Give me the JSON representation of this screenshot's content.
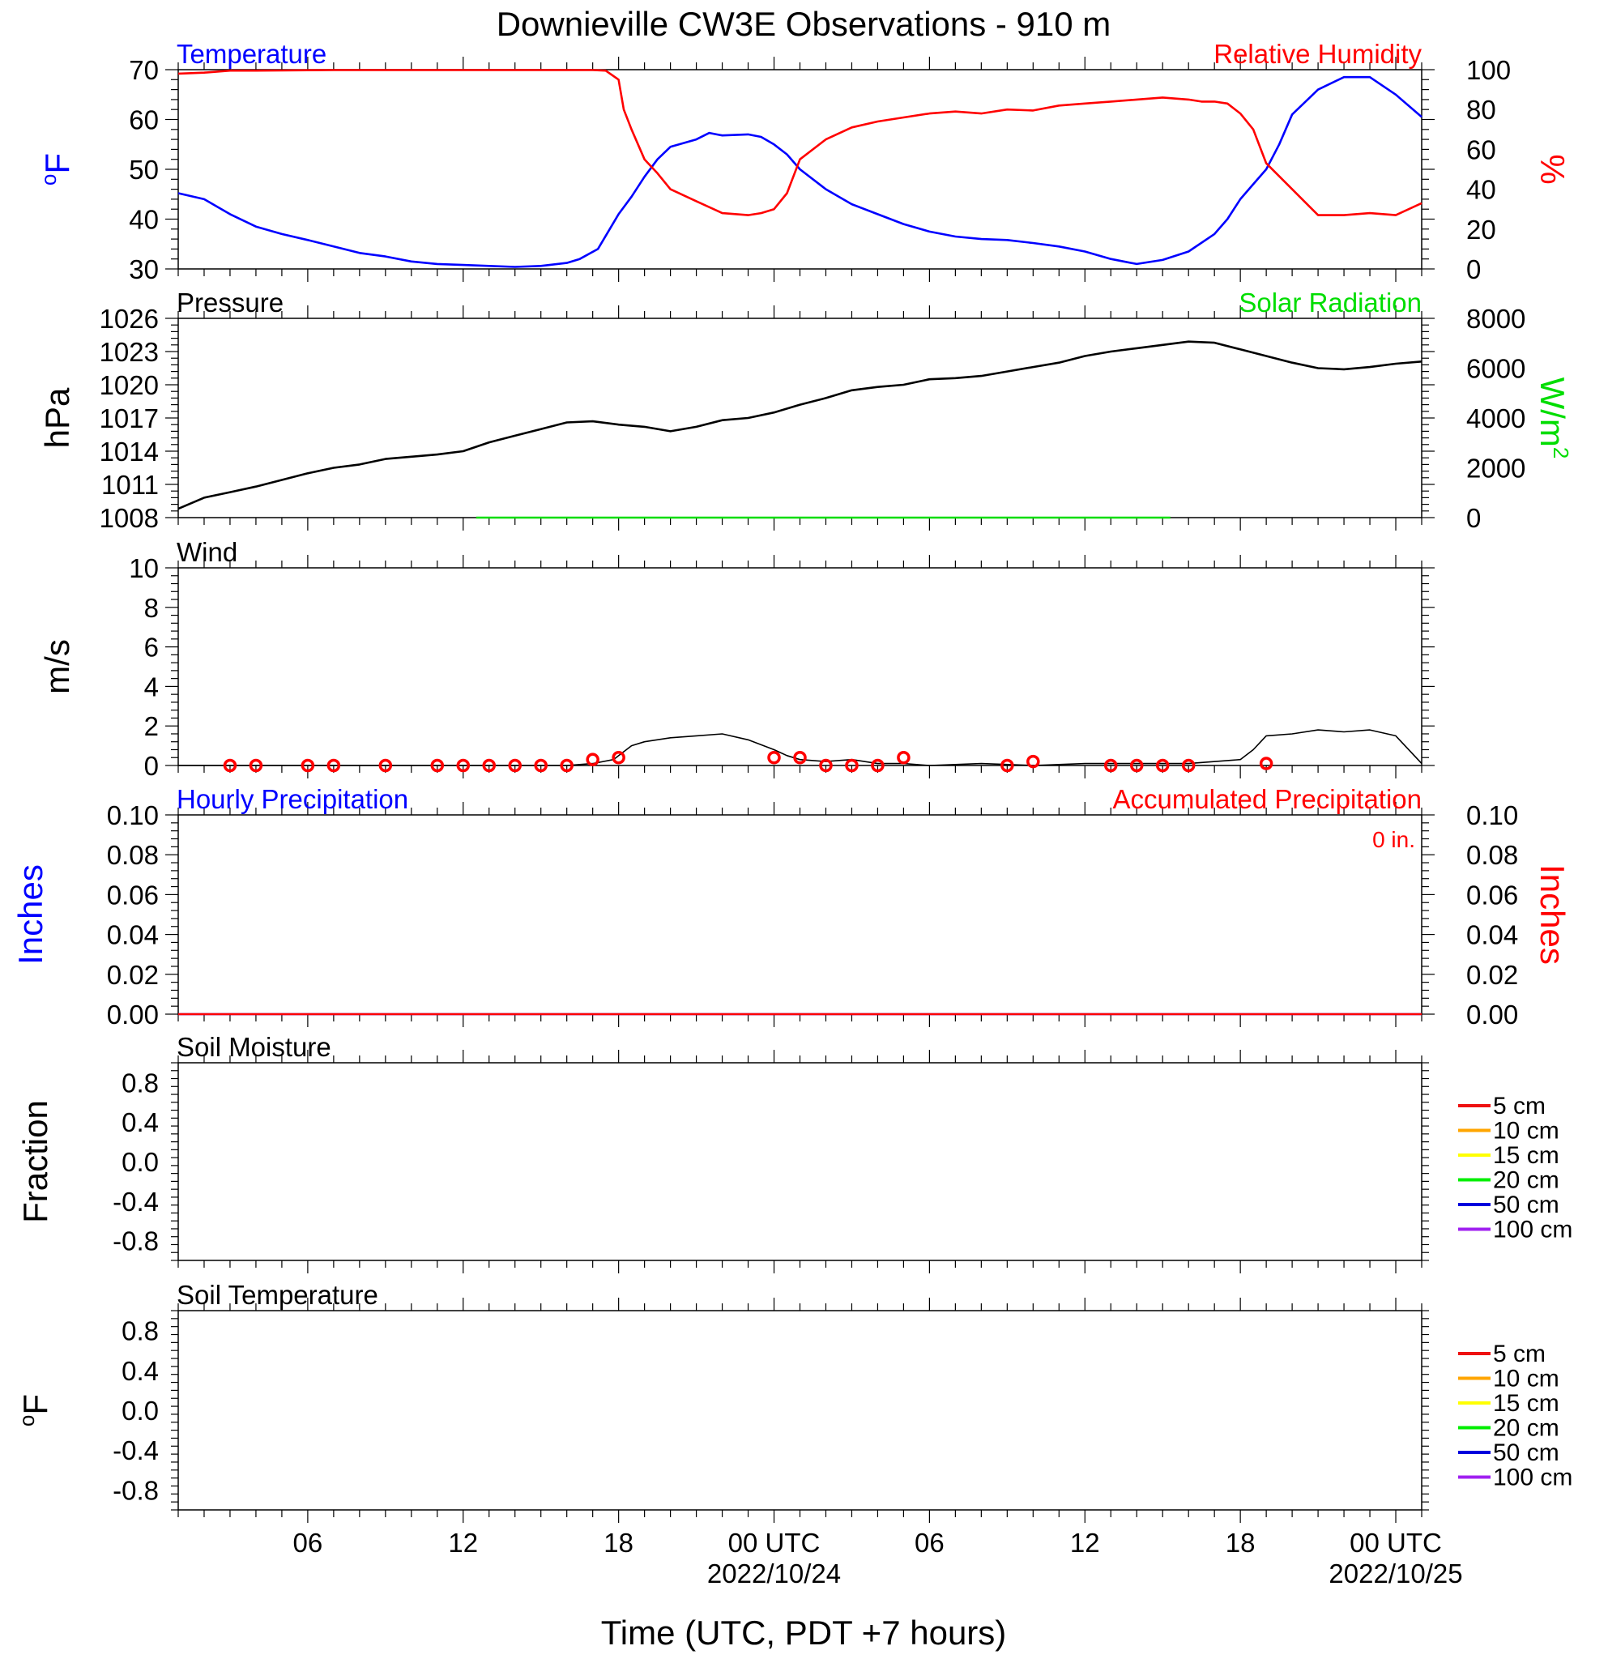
{
  "title": "Downieville CW3E Observations - 910 m",
  "xlabel": "Time (UTC, PDT +7 hours)",
  "x_ticks": [
    {
      "t": 6,
      "label": "06",
      "date": ""
    },
    {
      "t": 12,
      "label": "12",
      "date": ""
    },
    {
      "t": 18,
      "label": "18",
      "date": ""
    },
    {
      "t": 24,
      "label": "00 UTC",
      "date": "2022/10/24"
    },
    {
      "t": 30,
      "label": "06",
      "date": ""
    },
    {
      "t": 36,
      "label": "12",
      "date": ""
    },
    {
      "t": 42,
      "label": "18",
      "date": ""
    },
    {
      "t": 48,
      "label": "00 UTC",
      "date": "2022/10/25"
    }
  ],
  "x_range_hours": [
    1,
    49
  ],
  "colors": {
    "blue": "#0000ff",
    "red": "#ff0000",
    "green": "#00dd00",
    "black": "#000000"
  },
  "panels": {
    "temp": {
      "left_title": "Temperature",
      "right_title": "Relative Humidity",
      "left_unit": "oF",
      "right_unit": "%"
    },
    "pressure": {
      "left_title": "Pressure",
      "right_title": "Solar Radiation",
      "left_unit": "hPa",
      "right_unit": "W/m2"
    },
    "wind": {
      "left_title": "Wind",
      "left_unit": "m/s"
    },
    "precip": {
      "left_title": "Hourly Precipitation",
      "right_title": "Accumulated Precipitation",
      "left_unit": "Inches",
      "right_unit": "Inches",
      "accum_label": "0 in."
    },
    "soilm": {
      "left_title": "Soil Moisture",
      "left_unit": "Fraction"
    },
    "soilt": {
      "left_title": "Soil Temperature",
      "left_unit": "oF"
    }
  },
  "legend": {
    "entries": [
      {
        "label": "5 cm",
        "color": "#ee1111"
      },
      {
        "label": "10 cm",
        "color": "#ffa500"
      },
      {
        "label": "15 cm",
        "color": "#ffff00"
      },
      {
        "label": "20 cm",
        "color": "#00ee00"
      },
      {
        "label": "50 cm",
        "color": "#0000dd"
      },
      {
        "label": "100 cm",
        "color": "#a020f0"
      }
    ]
  },
  "chart_data": [
    {
      "type": "line",
      "title": "Temperature / Relative Humidity",
      "x_unit": "hours since 2022/10/23 00 UTC",
      "ylim": [
        30,
        70
      ],
      "yticks": [
        30,
        40,
        50,
        60,
        70
      ],
      "y2lim": [
        0,
        100
      ],
      "y2ticks": [
        0,
        20,
        40,
        60,
        80,
        100
      ],
      "series": [
        {
          "name": "Temperature",
          "axis": "left",
          "color": "#0000ff",
          "x": [
            1,
            2,
            3,
            4,
            5,
            6,
            7,
            8,
            9,
            10,
            11,
            12,
            13,
            14,
            15,
            16,
            16.5,
            17.2,
            18,
            18.5,
            19,
            19.5,
            20,
            21,
            21.5,
            22,
            23,
            23.5,
            24,
            24.5,
            25,
            26,
            27,
            28,
            29,
            30,
            31,
            32,
            33,
            34,
            35,
            36,
            37,
            37.5,
            38,
            39,
            40,
            41,
            41.5,
            42,
            42.5,
            43,
            43.5,
            44,
            45,
            46,
            47,
            48,
            49
          ],
          "y": [
            45.2,
            44,
            41,
            38.5,
            37,
            35.8,
            34.5,
            33.2,
            32.5,
            31.5,
            31,
            30.8,
            30.6,
            30.4,
            30.6,
            31.2,
            32,
            34,
            41,
            44.5,
            48.5,
            52,
            54.5,
            56,
            57.3,
            56.8,
            57,
            56.5,
            55,
            53,
            50,
            46,
            43,
            41,
            39,
            37.5,
            36.5,
            36,
            35.8,
            35.2,
            34.5,
            33.5,
            32,
            31.5,
            31,
            31.8,
            33.5,
            37,
            40,
            44,
            47,
            50,
            55,
            61,
            66,
            68.5,
            68.5,
            65,
            60.5
          ]
        },
        {
          "name": "Relative Humidity",
          "axis": "right",
          "color": "#ff0000",
          "x": [
            1,
            2,
            3,
            4,
            5,
            6,
            7,
            8,
            9,
            10,
            11,
            12,
            13,
            14,
            15,
            16,
            17,
            17.5,
            18,
            18.2,
            18.5,
            19,
            19.5,
            20,
            21,
            22,
            23,
            23.5,
            24,
            24.5,
            25,
            26,
            27,
            28,
            29,
            30,
            31,
            32,
            33,
            34,
            35,
            36,
            37,
            38,
            39,
            40,
            40.5,
            41,
            41.5,
            42,
            42.5,
            43,
            44,
            45,
            46,
            47,
            48,
            49
          ],
          "y": [
            98,
            98.5,
            99.5,
            99.5,
            99.6,
            99.7,
            99.8,
            99.8,
            99.8,
            99.8,
            99.8,
            99.8,
            99.8,
            99.8,
            99.8,
            99.8,
            99.8,
            99.5,
            95,
            80,
            70,
            55,
            48,
            40,
            34,
            28,
            27,
            28,
            30,
            38,
            55,
            65,
            71,
            74,
            76,
            78,
            79,
            78,
            80,
            79.5,
            82,
            83,
            84,
            85,
            86,
            85,
            84,
            84,
            83,
            78,
            70,
            53,
            40,
            27,
            27,
            28,
            27,
            33
          ]
        }
      ]
    },
    {
      "type": "line",
      "title": "Pressure / Solar Radiation",
      "ylim": [
        1008,
        1026
      ],
      "yticks": [
        1008,
        1011,
        1014,
        1017,
        1020,
        1023,
        1026
      ],
      "y2lim": [
        0,
        8000
      ],
      "y2ticks": [
        0,
        2000,
        4000,
        6000,
        8000
      ],
      "series": [
        {
          "name": "Pressure",
          "axis": "left",
          "color": "#000000",
          "x": [
            1,
            2,
            3,
            4,
            5,
            6,
            7,
            8,
            9,
            10,
            11,
            12,
            13,
            14,
            15,
            16,
            17,
            18,
            19,
            20,
            21,
            22,
            23,
            24,
            25,
            26,
            27,
            28,
            29,
            30,
            31,
            32,
            33,
            34,
            35,
            36,
            37,
            38,
            39,
            40,
            41,
            42,
            43,
            44,
            45,
            46,
            47,
            48,
            49
          ],
          "y": [
            1008.8,
            1009.8,
            1010.3,
            1010.8,
            1011.4,
            1012.0,
            1012.5,
            1012.8,
            1013.3,
            1013.5,
            1013.7,
            1014.0,
            1014.8,
            1015.4,
            1016.0,
            1016.6,
            1016.7,
            1016.4,
            1016.2,
            1015.8,
            1016.2,
            1016.8,
            1017.0,
            1017.5,
            1018.2,
            1018.8,
            1019.5,
            1019.8,
            1020.0,
            1020.5,
            1020.6,
            1020.8,
            1021.2,
            1021.6,
            1022.0,
            1022.6,
            1023.0,
            1023.3,
            1023.6,
            1023.9,
            1023.8,
            1023.2,
            1022.6,
            1022.0,
            1021.5,
            1021.4,
            1021.6,
            1021.9,
            1022.1
          ]
        },
        {
          "name": "Solar Radiation",
          "axis": "right",
          "color": "#00dd00",
          "x": [
            12.5,
            16,
            37.8,
            39.3
          ],
          "y": [
            0,
            0,
            0,
            0
          ]
        }
      ]
    },
    {
      "type": "line",
      "title": "Wind",
      "ylim": [
        0,
        10
      ],
      "yticks": [
        0,
        2,
        4,
        6,
        8,
        10
      ],
      "series": [
        {
          "name": "Wind speed",
          "color": "#000000",
          "x": [
            1,
            3,
            6,
            9,
            12,
            15,
            16,
            17,
            17.8,
            18.5,
            19,
            20,
            21,
            22,
            23,
            24,
            24.5,
            25,
            26,
            27,
            28,
            29,
            30,
            32,
            34,
            36,
            38,
            40,
            42,
            42.5,
            43,
            44,
            45,
            46,
            47,
            48,
            49
          ],
          "y": [
            0,
            0,
            0,
            0,
            0,
            0,
            0,
            0.1,
            0.3,
            1.0,
            1.2,
            1.4,
            1.5,
            1.6,
            1.3,
            0.8,
            0.5,
            0.3,
            0.2,
            0.3,
            0.1,
            0.1,
            0,
            0.1,
            0,
            0.1,
            0.1,
            0.1,
            0.3,
            0.8,
            1.5,
            1.6,
            1.8,
            1.7,
            1.8,
            1.5,
            0.1
          ]
        },
        {
          "name": "Wind barbs",
          "color": "#ff0000",
          "x": [
            3,
            4,
            6,
            7,
            9,
            11,
            12,
            13,
            14,
            15,
            16,
            17,
            18,
            24,
            25,
            26,
            27,
            28,
            29,
            33,
            34,
            37,
            38,
            39,
            40,
            43
          ],
          "y": [
            0,
            0,
            0,
            0,
            0,
            0,
            0,
            0,
            0,
            0,
            0,
            0.3,
            0.4,
            0.4,
            0.4,
            0,
            0,
            0,
            0.4,
            0,
            0.2,
            0,
            0,
            0,
            0,
            0.1
          ]
        }
      ]
    },
    {
      "type": "line",
      "title": "Hourly Precipitation / Accumulated Precipitation",
      "ylim": [
        0,
        0.1
      ],
      "yticks": [
        0,
        0.02,
        0.04,
        0.06,
        0.08,
        0.1
      ],
      "y2lim": [
        0,
        0.1
      ],
      "series": [
        {
          "name": "Hourly Precipitation",
          "color": "#0000ff",
          "x": [
            1,
            49
          ],
          "y": [
            0,
            0
          ]
        },
        {
          "name": "Accumulated Precipitation",
          "color": "#ff0000",
          "x": [
            1,
            49
          ],
          "y": [
            0,
            0
          ]
        }
      ]
    },
    {
      "type": "line",
      "title": "Soil Moisture",
      "ylim": [
        -1,
        1
      ],
      "yticks": [
        -0.8,
        -0.4,
        0,
        0.4,
        0.8
      ],
      "series": []
    },
    {
      "type": "line",
      "title": "Soil Temperature",
      "ylim": [
        -1,
        1
      ],
      "yticks": [
        -0.8,
        -0.4,
        0,
        0.4,
        0.8
      ],
      "series": []
    }
  ]
}
